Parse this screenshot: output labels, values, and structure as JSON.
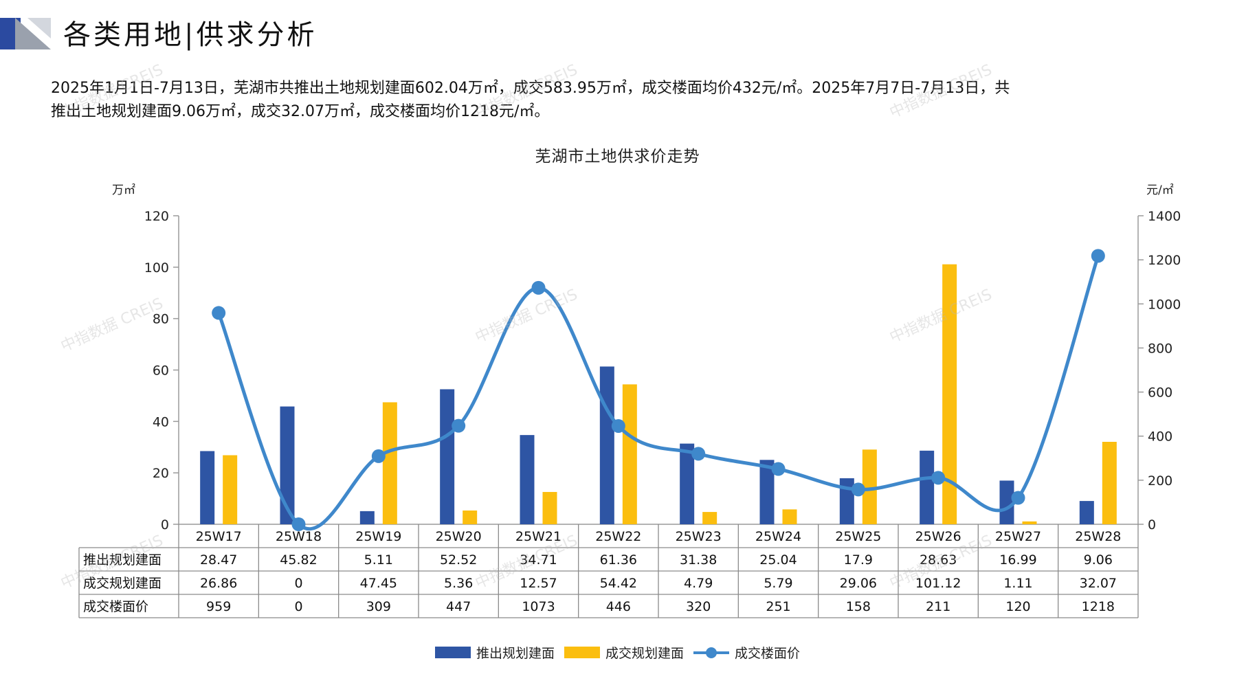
{
  "page": {
    "title": "各类用地|供求分析",
    "summary_line1": "2025年1月1日-7月13日，芜湖市共推出土地规划建面602.04万㎡，成交583.95万㎡，成交楼面均价432元/㎡。2025年7月7日-7月13日，共",
    "summary_line2": "推出土地规划建面9.06万㎡，成交32.07万㎡，成交楼面均价1218元/㎡。",
    "watermark": "中指数据 CREIS"
  },
  "colors": {
    "supply": "#2e55a4",
    "deal": "#fbbe0f",
    "price": "#3f88cb",
    "logo_dark": "#2b4aa0",
    "logo_gray": "#9aa1ad"
  },
  "chart_data": {
    "type": "bar",
    "title": "芜湖市土地供求价走势",
    "y_left_unit": "万㎡",
    "y_right_unit": "元/㎡",
    "y_left_lim": [
      0,
      120
    ],
    "y_left_ticks": [
      0,
      20,
      40,
      60,
      80,
      100,
      120
    ],
    "y_right_lim": [
      0,
      1400
    ],
    "y_right_ticks": [
      0,
      200,
      400,
      600,
      800,
      1000,
      1200,
      1400
    ],
    "legend_position": "bottom",
    "categories": [
      "25W17",
      "25W18",
      "25W19",
      "25W20",
      "25W21",
      "25W22",
      "25W23",
      "25W24",
      "25W25",
      "25W26",
      "25W27",
      "25W28"
    ],
    "series": [
      {
        "name": "推出规划建面",
        "type": "bar",
        "axis": "left",
        "values": [
          28.47,
          45.82,
          5.11,
          52.52,
          34.71,
          61.36,
          31.38,
          25.04,
          17.9,
          28.63,
          16.99,
          9.06
        ],
        "labels": [
          "28.47",
          "45.82",
          "5.11",
          "52.52",
          "34.71",
          "61.36",
          "31.38",
          "25.04",
          "17.9",
          "28.63",
          "16.99",
          "9.06"
        ]
      },
      {
        "name": "成交规划建面",
        "type": "bar",
        "axis": "left",
        "values": [
          26.86,
          0,
          47.45,
          5.36,
          12.57,
          54.42,
          4.79,
          5.79,
          29.06,
          101.12,
          1.11,
          32.07
        ],
        "labels": [
          "26.86",
          "0",
          "47.45",
          "5.36",
          "12.57",
          "54.42",
          "4.79",
          "5.79",
          "29.06",
          "101.12",
          "1.11",
          "32.07"
        ]
      },
      {
        "name": "成交楼面价",
        "type": "line",
        "axis": "right",
        "values": [
          959,
          0,
          309,
          447,
          1073,
          446,
          320,
          251,
          158,
          211,
          120,
          1218
        ],
        "labels": [
          "959",
          "0",
          "309",
          "447",
          "1073",
          "446",
          "320",
          "251",
          "158",
          "211",
          "120",
          "1218"
        ]
      }
    ]
  }
}
